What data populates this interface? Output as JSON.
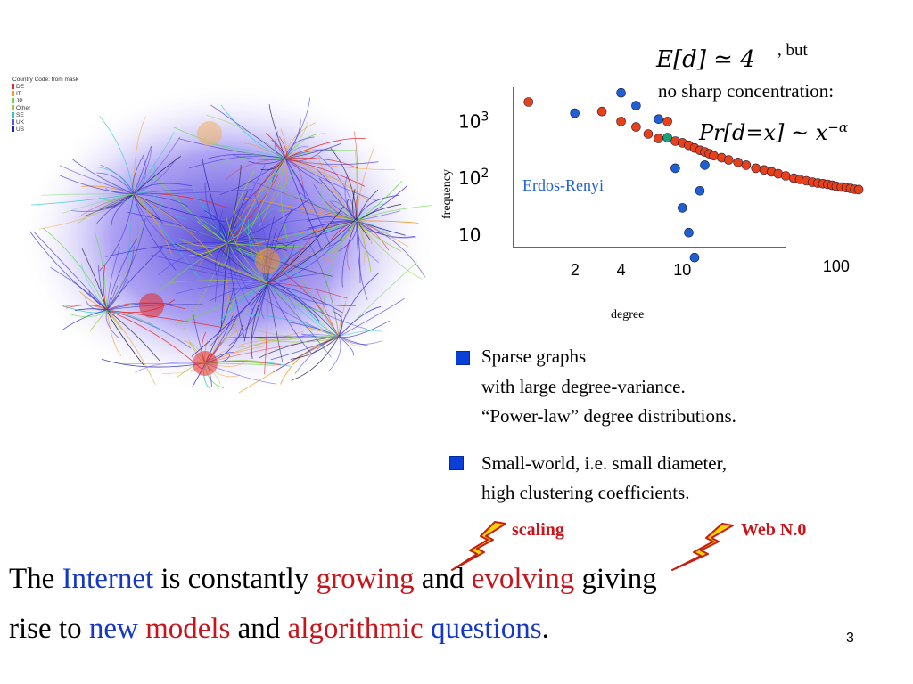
{
  "map_legend": {
    "title": "Country Code: from mask",
    "items": [
      {
        "label": "DE",
        "color": "#e32a2a"
      },
      {
        "label": "IT",
        "color": "#f29a22"
      },
      {
        "label": "JP",
        "color": "#66dd44"
      },
      {
        "label": "Other",
        "color": "#9acd32"
      },
      {
        "label": "SE",
        "color": "#22cccc"
      },
      {
        "label": "UK",
        "color": "#5555ff"
      },
      {
        "label": "US",
        "color": "#2222aa"
      }
    ]
  },
  "top_note": {
    "expectation": "E[d] ≃ 4",
    "but": ", but",
    "line2": "no sharp concentration:",
    "formula": "Pr[d=x] ~ x",
    "exponent": "−α"
  },
  "chart_data": {
    "type": "scatter",
    "xlabel": "degree",
    "ylabel": "frequency",
    "x_ticks": [
      {
        "label": "2",
        "value": 2
      },
      {
        "label": "4",
        "value": 4
      },
      {
        "label": "10",
        "value": 10
      },
      {
        "label": "100",
        "value": 100
      }
    ],
    "y_ticks": [
      {
        "label": "10",
        "exp": "3",
        "value": 1000
      },
      {
        "label": "10",
        "exp": "2",
        "value": 100
      },
      {
        "label": "10",
        "exp": "",
        "value": 10
      }
    ],
    "annotation": "Erdos-Renyi",
    "series": [
      {
        "name": "Erdos-Renyi",
        "color": "#1f5fd6",
        "points": [
          [
            2,
            1400
          ],
          [
            4,
            3200
          ],
          [
            5,
            1900
          ],
          [
            7,
            1100
          ],
          [
            9,
            150
          ],
          [
            10,
            30
          ],
          [
            11,
            11
          ],
          [
            12,
            4
          ],
          [
            13,
            60
          ],
          [
            14,
            170
          ]
        ]
      },
      {
        "color": "#e8411a",
        "points": [
          [
            1,
            2200
          ],
          [
            3,
            1500
          ],
          [
            4,
            1000
          ],
          [
            5,
            800
          ],
          [
            6,
            600
          ],
          [
            7,
            500
          ],
          [
            8,
            1000
          ],
          [
            9,
            450
          ],
          [
            10,
            420
          ],
          [
            11,
            380
          ],
          [
            12,
            340
          ],
          [
            13,
            310
          ],
          [
            14,
            290
          ],
          [
            15,
            270
          ],
          [
            16,
            250
          ],
          [
            18,
            230
          ],
          [
            20,
            210
          ],
          [
            23,
            190
          ],
          [
            26,
            170
          ],
          [
            30,
            150
          ],
          [
            34,
            140
          ],
          [
            38,
            130
          ],
          [
            42,
            120
          ],
          [
            47,
            110
          ],
          [
            53,
            100
          ],
          [
            58,
            95
          ],
          [
            64,
            90
          ],
          [
            70,
            85
          ],
          [
            76,
            82
          ],
          [
            82,
            80
          ],
          [
            88,
            78
          ],
          [
            94,
            75
          ],
          [
            100,
            72
          ],
          [
            108,
            70
          ],
          [
            116,
            68
          ],
          [
            124,
            66
          ],
          [
            132,
            64
          ],
          [
            140,
            63
          ]
        ]
      },
      {
        "color": "#1aa07a",
        "points": [
          [
            8,
            520
          ]
        ]
      }
    ]
  },
  "bullets": [
    {
      "lines": [
        "Sparse graphs",
        "with large degree-variance.",
        "“Power-law” degree distributions."
      ]
    },
    {
      "lines": [
        "Small-world, i.e. small diameter,",
        "high clustering coefficients."
      ]
    }
  ],
  "callouts": [
    {
      "label": "scaling"
    },
    {
      "label": "Web N.0"
    }
  ],
  "bottom": {
    "w1": "The",
    "w2": "Internet",
    "w3": "is constantly",
    "w4": "growing",
    "w5": "and",
    "w6": "evolving",
    "w7": "giving",
    "w8": "rise to",
    "w9": "new",
    "w10": "models",
    "w11": "and",
    "w12": "algorithmic",
    "w13": "questions",
    "w14": "."
  },
  "page_number": "3",
  "colors": {
    "accent_blue": "#1537c8",
    "accent_red": "#c8141a",
    "bullet": "#0a3fd8",
    "lightning": "#f2d600"
  }
}
